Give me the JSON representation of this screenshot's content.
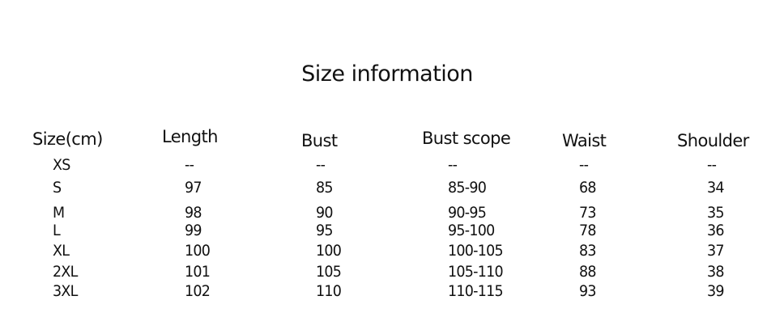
{
  "title": "Size information",
  "table": {
    "headers": [
      "Size(cm)",
      "Length",
      "Bust",
      "Bust scope",
      "Waist",
      "Shoulder"
    ],
    "rows": [
      [
        "XS",
        "--",
        "--",
        "--",
        "--",
        "--"
      ],
      [
        "S",
        "97",
        "85",
        "85-90",
        "68",
        "34"
      ],
      [
        "M",
        "98",
        "90",
        "90-95",
        "73",
        "35"
      ],
      [
        "L",
        "99",
        "95",
        "95-100",
        "78",
        "36"
      ],
      [
        "XL",
        "100",
        "100",
        "100-105",
        "83",
        "37"
      ],
      [
        "2XL",
        "101",
        "105",
        "105-110",
        "88",
        "38"
      ],
      [
        "3XL",
        "102",
        "110",
        "110-115",
        "93",
        "39"
      ]
    ]
  }
}
